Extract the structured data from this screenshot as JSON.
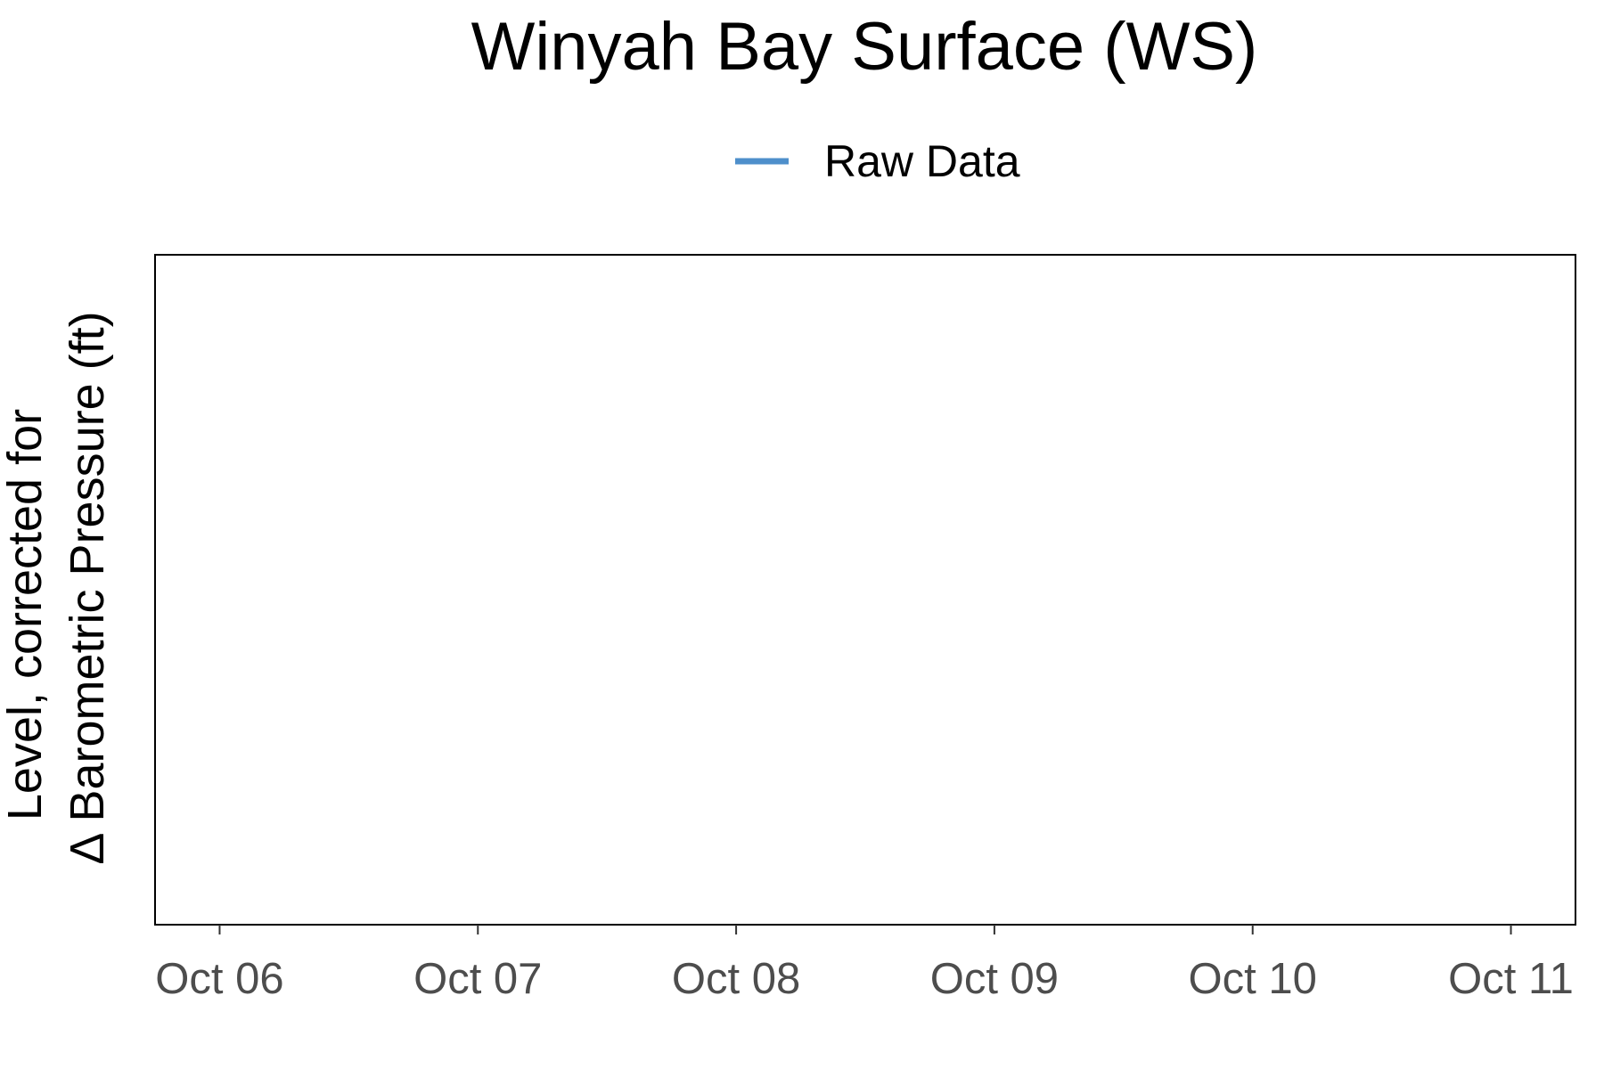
{
  "chart_data": {
    "type": "line",
    "title": "Winyah Bay Surface (WS)",
    "xlabel": "",
    "ylabel_lines": [
      "Level, corrected for",
      "Δ Barometric Pressure (ft)"
    ],
    "x_ticks": [
      "Oct 06",
      "Oct 07",
      "Oct 08",
      "Oct 09",
      "Oct 10",
      "Oct 11"
    ],
    "xlim": [
      "2023-10-05 18:00",
      "2023-10-11 06:00"
    ],
    "legend_position": "top",
    "grid": false,
    "series": [
      {
        "name": "Raw Data",
        "color": "#4e8fcb",
        "x": [],
        "y": []
      }
    ]
  }
}
